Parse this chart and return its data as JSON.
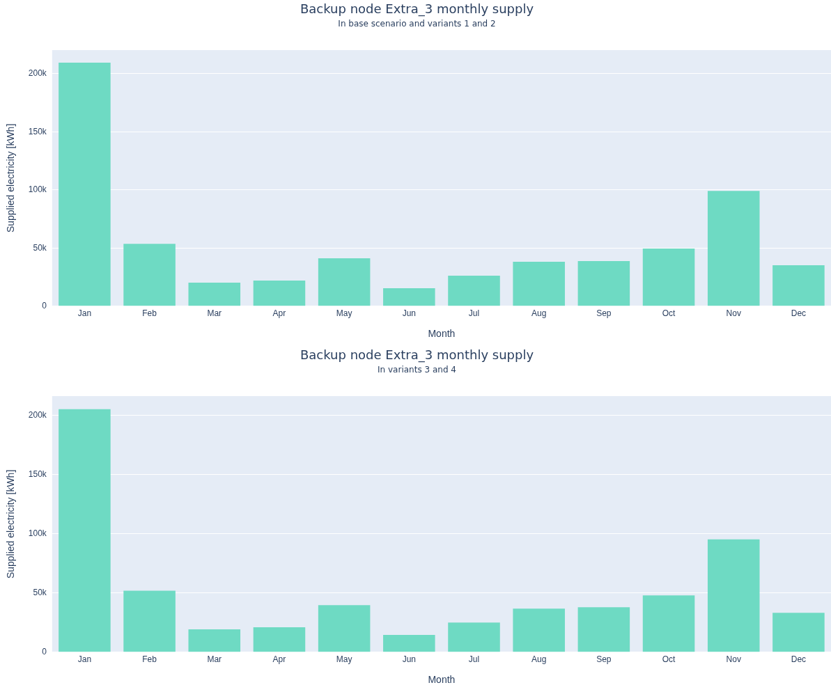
{
  "chart_data": [
    {
      "type": "bar",
      "title": "Backup node Extra_3 monthly supply",
      "subtitle": "In base scenario and variants 1 and 2",
      "xlabel": "Month",
      "ylabel": "Supplied electricity [kWh]",
      "categories": [
        "Jan",
        "Feb",
        "Mar",
        "Apr",
        "May",
        "Jun",
        "Jul",
        "Aug",
        "Sep",
        "Oct",
        "Nov",
        "Dec"
      ],
      "values": [
        209500,
        53700,
        20300,
        22000,
        41200,
        15500,
        26300,
        38200,
        38800,
        49600,
        99100,
        35200
      ],
      "color": "#6edac3",
      "ylim": [
        0,
        220300
      ],
      "yticks": [
        {
          "value": 0,
          "label": "0"
        },
        {
          "value": 50000,
          "label": "50k"
        },
        {
          "value": 100000,
          "label": "100k"
        },
        {
          "value": 150000,
          "label": "150k"
        },
        {
          "value": 200000,
          "label": "200k"
        }
      ],
      "grid": "y",
      "legend": false
    },
    {
      "type": "bar",
      "title": "Backup node Extra_3 monthly supply",
      "subtitle": "In variants 3 and 4",
      "xlabel": "Month",
      "ylabel": "Supplied electricity [kWh]",
      "categories": [
        "Jan",
        "Feb",
        "Mar",
        "Apr",
        "May",
        "Jun",
        "Jul",
        "Aug",
        "Sep",
        "Oct",
        "Nov",
        "Dec"
      ],
      "values": [
        205300,
        52000,
        19300,
        21000,
        39800,
        14600,
        25100,
        36800,
        38000,
        48000,
        95300,
        33300
      ],
      "color": "#6edac3",
      "ylim": [
        0,
        216400
      ],
      "yticks": [
        {
          "value": 0,
          "label": "0"
        },
        {
          "value": 50000,
          "label": "50k"
        },
        {
          "value": 100000,
          "label": "100k"
        },
        {
          "value": 150000,
          "label": "150k"
        },
        {
          "value": 200000,
          "label": "200k"
        }
      ],
      "grid": "y",
      "legend": false
    }
  ]
}
